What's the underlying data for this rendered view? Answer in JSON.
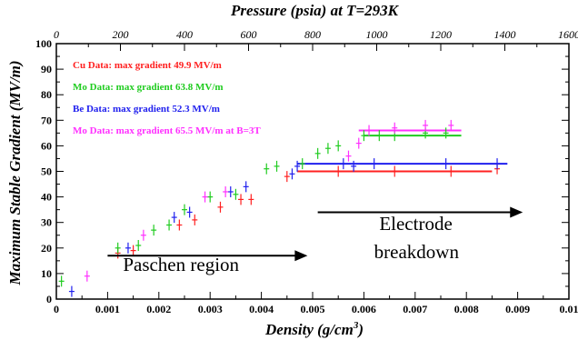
{
  "chart_data": {
    "type": "scatter",
    "title": "",
    "xlabel": "Density (g/cm",
    "xlabel_sup": "3",
    "xlabel_close": ")",
    "ylabel": "Maximum Stable Gradient (MV/m)",
    "x2label": "Pressure (psia) at T=293K",
    "xlim": [
      0,
      0.01
    ],
    "ylim": [
      0,
      100
    ],
    "x2lim": [
      0,
      1600
    ],
    "x_ticks": [
      "0",
      "0.001",
      "0.002",
      "0.003",
      "0.004",
      "0.005",
      "0.006",
      "0.007",
      "0.008",
      "0.009",
      "0.01"
    ],
    "y_ticks": [
      "0",
      "10",
      "20",
      "30",
      "40",
      "50",
      "60",
      "70",
      "80",
      "90",
      "100"
    ],
    "x2_ticks": [
      "0",
      "200",
      "400",
      "600",
      "800",
      "1000",
      "1200",
      "1400",
      "1600"
    ],
    "grid": false,
    "legend_position": "top-left",
    "series": [
      {
        "name": "Cu Data: max gradient 49.9 MV/m",
        "color": "#ff2020",
        "points": [
          [
            0.0012,
            18
          ],
          [
            0.0015,
            19
          ],
          [
            0.0024,
            29
          ],
          [
            0.0027,
            31
          ],
          [
            0.0032,
            36
          ],
          [
            0.0036,
            39
          ],
          [
            0.0038,
            39
          ],
          [
            0.0045,
            48
          ],
          [
            0.0055,
            50
          ],
          [
            0.0066,
            50
          ],
          [
            0.0077,
            50
          ],
          [
            0.0086,
            51
          ]
        ],
        "hlines": [
          [
            0.0047,
            0.0085,
            50
          ]
        ]
      },
      {
        "name": "Mo Data: max gradient 63.8 MV/m",
        "color": "#20cc20",
        "points": [
          [
            0.0001,
            7
          ],
          [
            0.0012,
            20
          ],
          [
            0.0016,
            21
          ],
          [
            0.0019,
            27
          ],
          [
            0.0022,
            29
          ],
          [
            0.0025,
            35
          ],
          [
            0.003,
            40
          ],
          [
            0.0035,
            41
          ],
          [
            0.0041,
            51
          ],
          [
            0.0043,
            52
          ],
          [
            0.0048,
            53
          ],
          [
            0.0051,
            57
          ],
          [
            0.0053,
            59
          ],
          [
            0.0055,
            60
          ],
          [
            0.006,
            64
          ],
          [
            0.0063,
            64
          ],
          [
            0.0066,
            64
          ],
          [
            0.0072,
            65
          ],
          [
            0.0076,
            65
          ]
        ],
        "hlines": [
          [
            0.006,
            0.0079,
            64
          ]
        ]
      },
      {
        "name": "Be Data: max gradient 52.3 MV/m",
        "color": "#2020ee",
        "points": [
          [
            0.0003,
            3
          ],
          [
            0.0014,
            20
          ],
          [
            0.0023,
            32
          ],
          [
            0.0026,
            34
          ],
          [
            0.0034,
            42
          ],
          [
            0.0037,
            44
          ],
          [
            0.0046,
            49
          ],
          [
            0.0047,
            52
          ],
          [
            0.0056,
            53
          ],
          [
            0.0058,
            52
          ],
          [
            0.0062,
            53
          ],
          [
            0.0076,
            53
          ],
          [
            0.0086,
            53
          ]
        ],
        "hlines": [
          [
            0.0047,
            0.0088,
            53
          ]
        ]
      },
      {
        "name": "Mo Data: max gradient 65.5 MV/m at B=3T",
        "color": "#ff30ff",
        "points": [
          [
            0.0006,
            9
          ],
          [
            0.0017,
            25
          ],
          [
            0.0029,
            40
          ],
          [
            0.0033,
            42
          ],
          [
            0.0057,
            56
          ],
          [
            0.0059,
            61
          ],
          [
            0.0061,
            66
          ],
          [
            0.0066,
            67
          ],
          [
            0.0072,
            68
          ],
          [
            0.0077,
            68
          ]
        ],
        "hlines": [
          [
            0.0059,
            0.0079,
            66
          ]
        ]
      }
    ],
    "annotations": [
      {
        "text": "Paschen region",
        "x": 0.0013,
        "y": 11
      },
      {
        "text": "Electrode",
        "x": 0.0063,
        "y": 27
      },
      {
        "text": "breakdown",
        "x": 0.0062,
        "y": 16
      }
    ],
    "arrows": [
      {
        "from": [
          0.001,
          17
        ],
        "to": [
          0.0049,
          17
        ]
      },
      {
        "from": [
          0.0051,
          34
        ],
        "to": [
          0.0091,
          34
        ]
      }
    ]
  }
}
